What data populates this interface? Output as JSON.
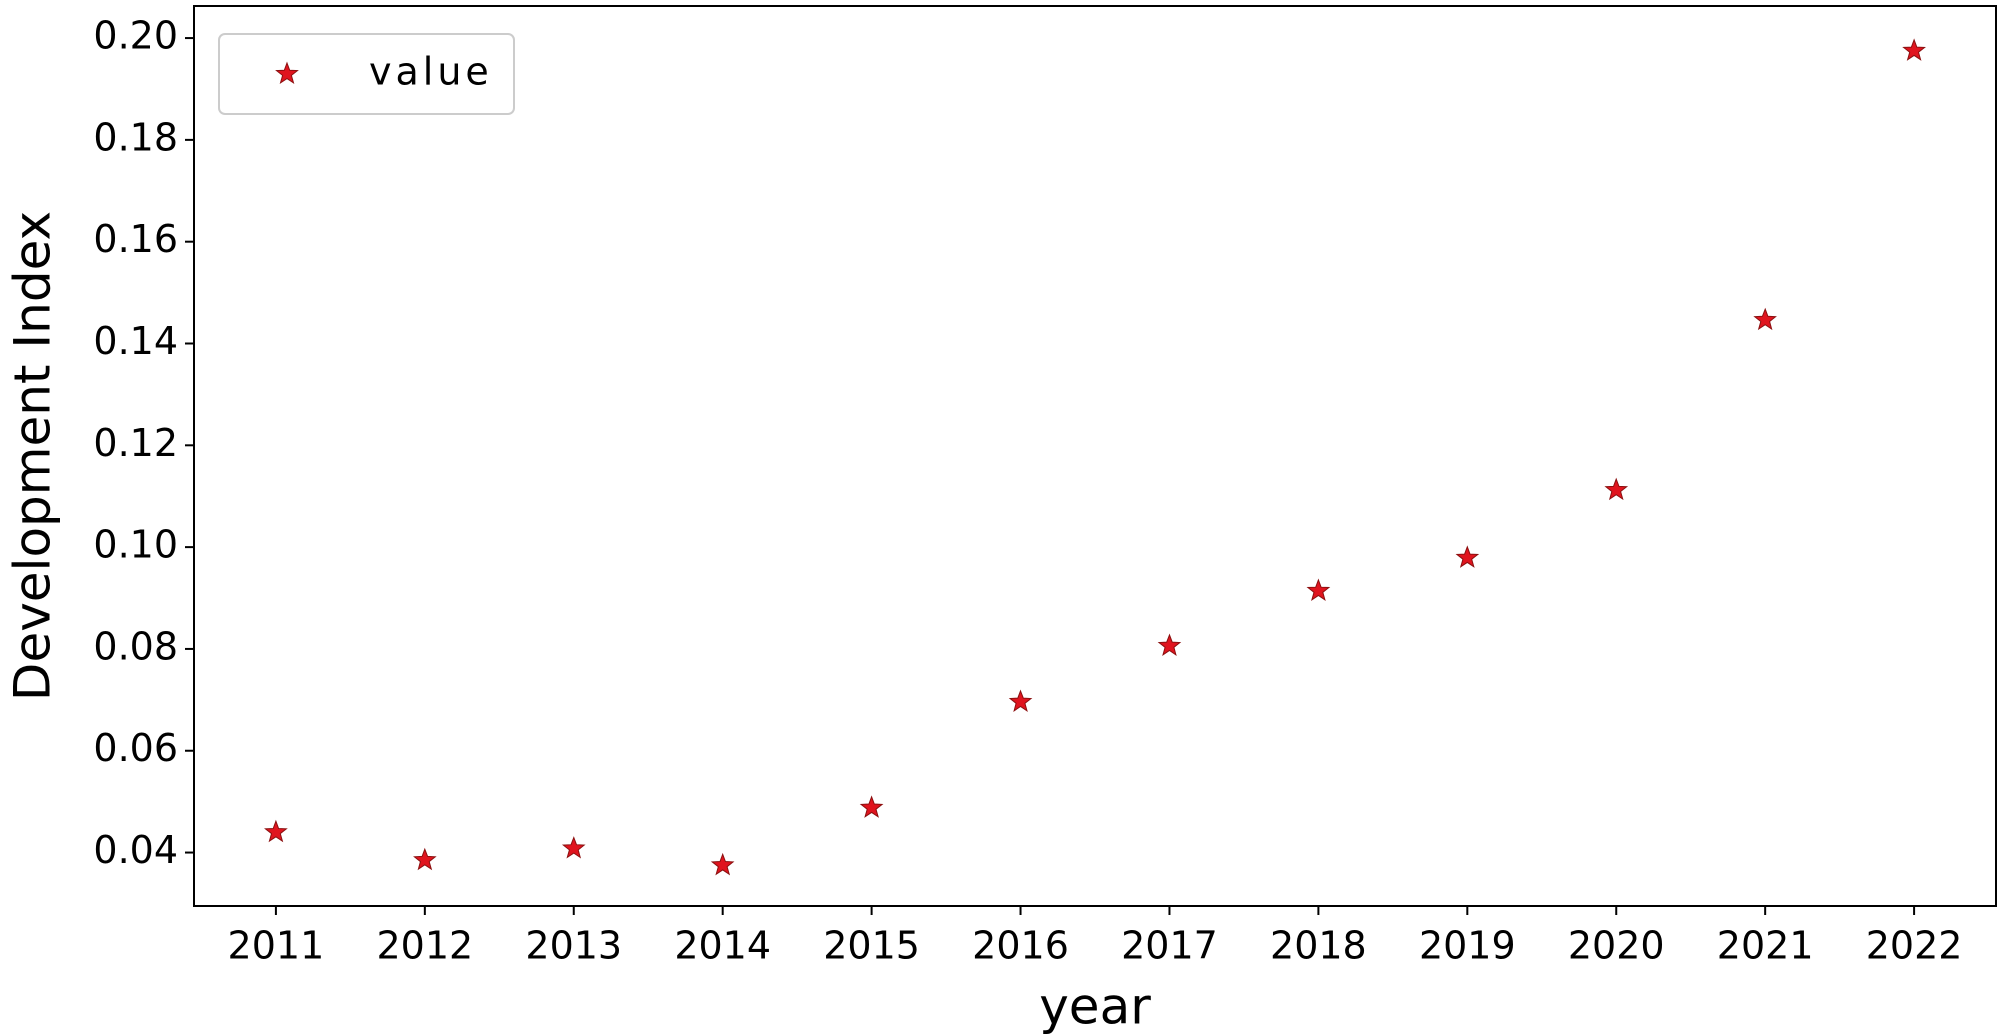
{
  "chart_data": {
    "type": "scatter",
    "x_label": "year",
    "y_label": "Development Index",
    "x": [
      2011,
      2012,
      2013,
      2014,
      2015,
      2016,
      2017,
      2018,
      2019,
      2020,
      2021,
      2022
    ],
    "series": [
      {
        "name": "value",
        "color": "#e0141e",
        "marker": "star",
        "values": [
          0.044,
          0.0385,
          0.0408,
          0.0375,
          0.0488,
          0.0696,
          0.0806,
          0.0914,
          0.0979,
          0.1112,
          0.1446,
          0.1975
        ]
      }
    ],
    "xlim": [
      2010.45,
      2022.55
    ],
    "xticks": [
      2011,
      2012,
      2013,
      2014,
      2015,
      2016,
      2017,
      2018,
      2019,
      2020,
      2021,
      2022
    ],
    "ylim": [
      0.0295,
      0.2063
    ],
    "yticks": [
      0.04,
      0.06,
      0.08,
      {
        "value": 0.1,
        "label": "0.10"
      },
      0.12,
      0.14,
      0.16,
      0.18,
      {
        "value": 0.2,
        "label": "0.20"
      }
    ],
    "grid": false,
    "legend": "upper left"
  }
}
